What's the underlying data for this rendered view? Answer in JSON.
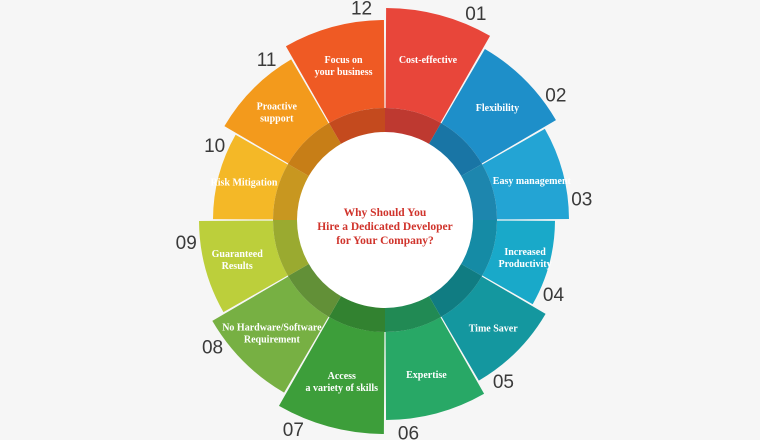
{
  "title": {
    "line1": "Why Should You",
    "line2": "Hire a Dedicated Developer",
    "line3": "for Your Company?"
  },
  "segments": [
    {
      "number": "01",
      "label": [
        "Cost-effective"
      ],
      "color": "#e8463a"
    },
    {
      "number": "02",
      "label": [
        "Flexibility"
      ],
      "color": "#1e8fc9"
    },
    {
      "number": "03",
      "label": [
        "Easy management"
      ],
      "color": "#23a4d4"
    },
    {
      "number": "04",
      "label": [
        "Increased",
        "Productivity"
      ],
      "color": "#19a9c9"
    },
    {
      "number": "05",
      "label": [
        "Time Saver"
      ],
      "color": "#14979f"
    },
    {
      "number": "06",
      "label": [
        "Expertise"
      ],
      "color": "#28a866"
    },
    {
      "number": "07",
      "label": [
        "Access",
        "a variety of skills"
      ],
      "color": "#3d9e3a"
    },
    {
      "number": "08",
      "label": [
        "No Hardware/Software",
        "Requirement"
      ],
      "color": "#77b043"
    },
    {
      "number": "09",
      "label": [
        "Guaranteed",
        "Results"
      ],
      "color": "#bccf3b"
    },
    {
      "number": "10",
      "label": [
        "Risk Mitigation"
      ],
      "color": "#f4b827"
    },
    {
      "number": "11",
      "label": [
        "Proactive",
        "support"
      ],
      "color": "#f39a1c"
    },
    {
      "number": "12",
      "label": [
        "Focus on",
        "your business"
      ],
      "color": "#ef5a24"
    }
  ]
}
